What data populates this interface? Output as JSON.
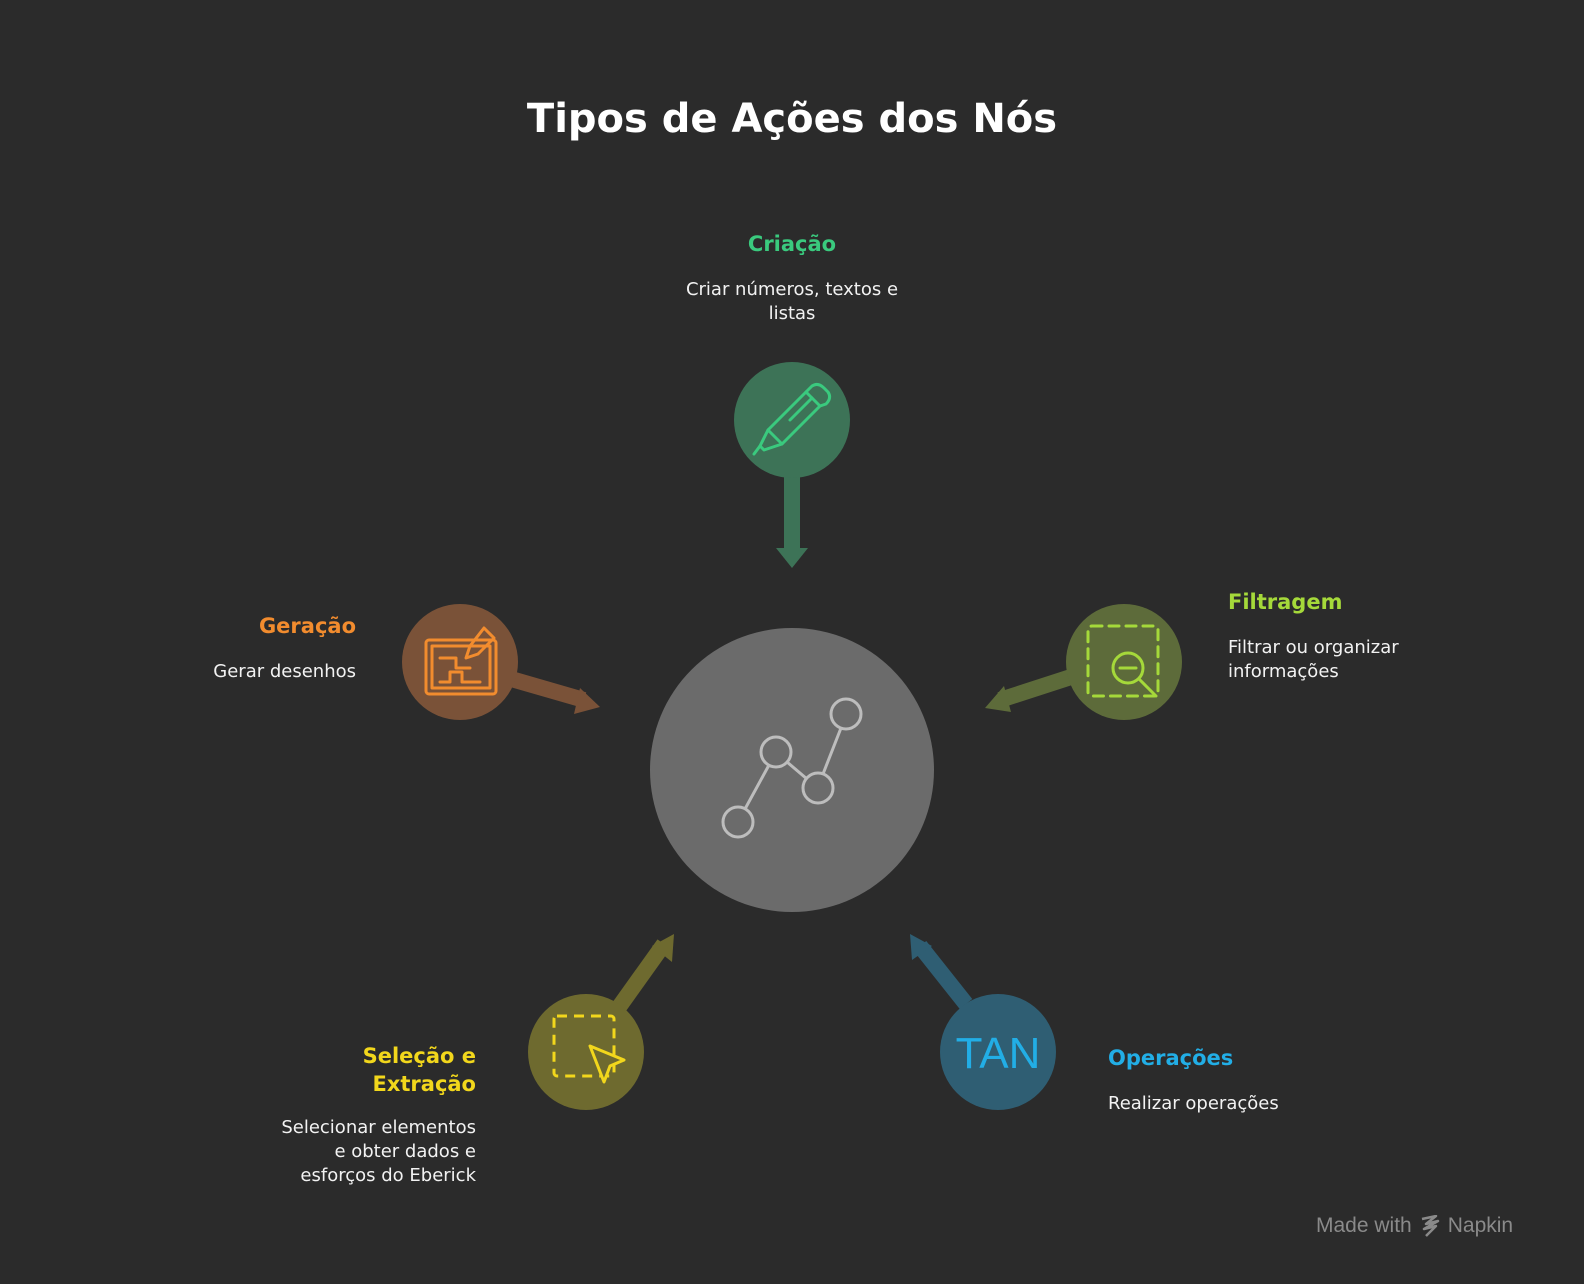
{
  "title": "Tipos de Ações dos Nós",
  "center": {
    "icon": "node-graph-icon",
    "color": "#6b6b6b"
  },
  "nodes": {
    "criacao": {
      "label": "Criação",
      "description_lines": [
        "Criar números, textos e",
        "listas"
      ],
      "icon": "pen-icon",
      "color": "#3aca7e",
      "circle_color": "#3d7357"
    },
    "filtragem": {
      "label": "Filtragem",
      "description_lines": [
        "Filtrar ou organizar",
        "informações"
      ],
      "icon": "zoom-out-selection-icon",
      "color": "#a5d93a",
      "circle_color": "#5d6b3a"
    },
    "operacoes": {
      "label": "Operações",
      "description_lines": [
        "Realizar operações"
      ],
      "icon_text": "TAN",
      "icon": "tan-function-icon",
      "color": "#22aee6",
      "circle_color": "#2f5e73"
    },
    "selecao": {
      "label_lines": [
        "Seleção e",
        "Extração"
      ],
      "description_lines": [
        "Selecionar elementos",
        "e obter dados e",
        "esforços do Eberick"
      ],
      "icon": "selection-cursor-icon",
      "color": "#f2d71c",
      "circle_color": "#6e6a2f"
    },
    "geracao": {
      "label": "Geração",
      "description_lines": [
        "Gerar desenhos"
      ],
      "icon": "blueprint-pencil-icon",
      "color": "#f28c2e",
      "circle_color": "#7a5238"
    }
  },
  "footer": {
    "made_with": "Made with",
    "brand": "Napkin"
  }
}
